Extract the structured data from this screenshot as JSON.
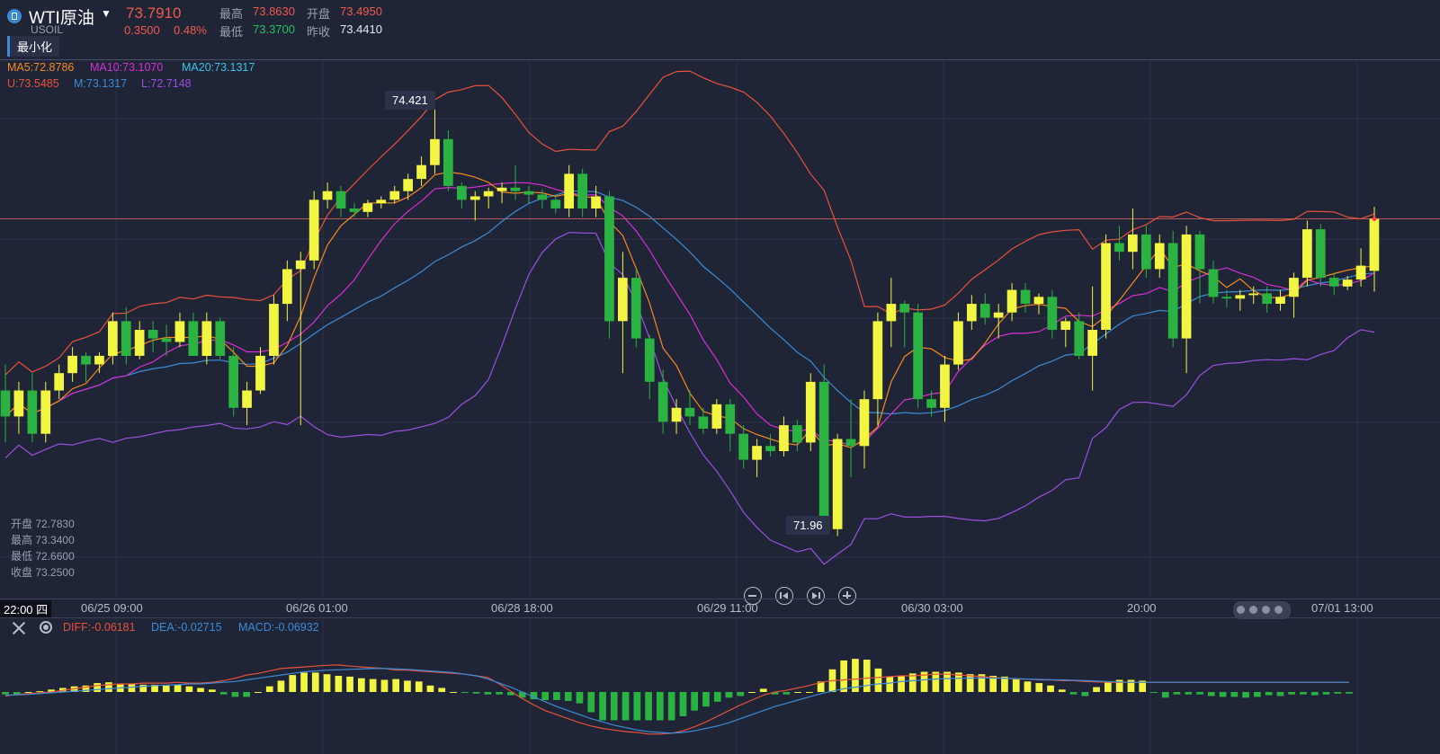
{
  "symbol": {
    "name": "WTI原油",
    "code": "USOIL",
    "last": "73.7910",
    "change": "0.3500",
    "change_pct": "0.48%"
  },
  "ohlc_summary": [
    {
      "label": "最高",
      "value": "73.8630",
      "color": "#f05a4e"
    },
    {
      "label": "开盘",
      "value": "73.4950",
      "color": "#f05a4e"
    },
    {
      "label": "最低",
      "value": "73.3700",
      "color": "#29c25a"
    },
    {
      "label": "昨收",
      "value": "73.4410",
      "color": "#e8eaf0"
    }
  ],
  "minimize_label": "最小化",
  "legend_ma": [
    {
      "text": "MA5:72.8786",
      "color": "#f58a1f"
    },
    {
      "text": "MA10:73.1070",
      "color": "#d92fd6"
    },
    {
      "text": "MA20:73.1317",
      "color": "#3cc3e8"
    }
  ],
  "legend_boll": [
    {
      "text": "U:73.5485",
      "color": "#e8513c"
    },
    {
      "text": "M:73.1317",
      "color": "#3d8bd8"
    },
    {
      "text": "L:72.7148",
      "color": "#9b51e0"
    }
  ],
  "hover_ohlc": [
    {
      "label": "开盘",
      "value": "72.7830"
    },
    {
      "label": "最高",
      "value": "73.3400"
    },
    {
      "label": "最低",
      "value": "72.6600"
    },
    {
      "label": "收盘",
      "value": "73.2500"
    }
  ],
  "cursor_time": "22:00 四",
  "time_labels": [
    "06/25 09:00",
    "06/26 01:00",
    "06/28 18:00",
    "06/29 11:00",
    "06/30 03:00",
    "20:00",
    "07/01 13:00"
  ],
  "legend_macd": [
    {
      "text": "DIFF:-0.06181",
      "color": "#e8513c"
    },
    {
      "text": "DEA:-0.02715",
      "color": "#3d8bd8"
    },
    {
      "text": "MACD:-0.06932",
      "color": "#3d8bd8"
    }
  ],
  "colors": {
    "up": "#f2f542",
    "down": "#2bb342",
    "background": "#1f2436",
    "grid": "#2c3248",
    "last_price_line": "#b05a5a",
    "ma5": "#f58a1f",
    "ma10": "#d92fd6",
    "ma20": "#3d8bd8",
    "upper": "#e8513c",
    "lower": "#9b51e0"
  },
  "chart_data": [
    {
      "type": "candlestick",
      "title": "",
      "annotations": [
        {
          "text": "74.421",
          "kind": "max"
        },
        {
          "text": "71.96",
          "kind": "min"
        }
      ],
      "ylim": [
        71.6,
        74.7
      ],
      "last_price": 73.79,
      "candles": [
        [
          72.8,
          72.95,
          72.5,
          72.65
        ],
        [
          72.65,
          72.85,
          72.55,
          72.8
        ],
        [
          72.8,
          72.9,
          72.5,
          72.55
        ],
        [
          72.55,
          72.85,
          72.5,
          72.8
        ],
        [
          72.8,
          72.95,
          72.75,
          72.9
        ],
        [
          72.9,
          73.05,
          72.85,
          73.0
        ],
        [
          73.0,
          73.02,
          72.85,
          72.95
        ],
        [
          72.95,
          73.02,
          72.9,
          73.0
        ],
        [
          73.0,
          73.25,
          72.95,
          73.2
        ],
        [
          73.2,
          73.28,
          72.95,
          73.0
        ],
        [
          73.0,
          73.2,
          72.98,
          73.15
        ],
        [
          73.15,
          73.2,
          73.02,
          73.1
        ],
        [
          73.1,
          73.18,
          73.0,
          73.08
        ],
        [
          73.08,
          73.25,
          73.05,
          73.2
        ],
        [
          73.2,
          73.25,
          73.0,
          73.0
        ],
        [
          73.0,
          73.25,
          72.95,
          73.2
        ],
        [
          73.2,
          73.22,
          72.98,
          73.0
        ],
        [
          73.0,
          73.05,
          72.65,
          72.7
        ],
        [
          72.7,
          72.85,
          72.6,
          72.8
        ],
        [
          72.8,
          73.05,
          72.78,
          73.0
        ],
        [
          73.0,
          73.35,
          72.95,
          73.3
        ],
        [
          73.3,
          73.55,
          73.2,
          73.5
        ],
        [
          73.5,
          73.6,
          72.6,
          73.55
        ],
        [
          73.55,
          73.95,
          73.5,
          73.9
        ],
        [
          73.9,
          74.0,
          73.85,
          73.95
        ],
        [
          73.95,
          73.98,
          73.8,
          73.85
        ],
        [
          73.85,
          73.88,
          73.8,
          73.83
        ],
        [
          73.83,
          73.9,
          73.8,
          73.88
        ],
        [
          73.88,
          73.92,
          73.85,
          73.9
        ],
        [
          73.9,
          73.98,
          73.88,
          73.95
        ],
        [
          73.95,
          74.05,
          73.9,
          74.02
        ],
        [
          74.02,
          74.15,
          73.98,
          74.1
        ],
        [
          74.1,
          74.42,
          74.05,
          74.25
        ],
        [
          74.25,
          74.3,
          73.95,
          73.98
        ],
        [
          73.98,
          74.0,
          73.85,
          73.9
        ],
        [
          73.9,
          73.95,
          73.78,
          73.92
        ],
        [
          73.92,
          73.97,
          73.85,
          73.95
        ],
        [
          73.95,
          74.0,
          73.88,
          73.97
        ],
        [
          73.97,
          74.1,
          73.9,
          73.95
        ],
        [
          73.95,
          73.98,
          73.88,
          73.93
        ],
        [
          73.93,
          73.96,
          73.85,
          73.9
        ],
        [
          73.9,
          73.93,
          73.82,
          73.85
        ],
        [
          73.85,
          74.1,
          73.8,
          74.05
        ],
        [
          74.05,
          74.08,
          73.8,
          73.85
        ],
        [
          73.85,
          73.98,
          73.8,
          73.92
        ],
        [
          73.92,
          73.95,
          73.1,
          73.2
        ],
        [
          73.2,
          73.6,
          72.9,
          73.45
        ],
        [
          73.45,
          73.5,
          73.05,
          73.1
        ],
        [
          73.1,
          73.12,
          72.75,
          72.85
        ],
        [
          72.85,
          72.92,
          72.55,
          72.62
        ],
        [
          72.62,
          72.75,
          72.55,
          72.7
        ],
        [
          72.7,
          72.8,
          72.6,
          72.65
        ],
        [
          72.65,
          72.7,
          72.55,
          72.58
        ],
        [
          72.58,
          72.75,
          72.55,
          72.72
        ],
        [
          72.72,
          72.75,
          72.45,
          72.55
        ],
        [
          72.55,
          72.6,
          72.35,
          72.4
        ],
        [
          72.4,
          72.52,
          72.3,
          72.48
        ],
        [
          72.48,
          72.55,
          72.42,
          72.45
        ],
        [
          72.45,
          72.65,
          72.42,
          72.6
        ],
        [
          72.6,
          72.63,
          72.45,
          72.5
        ],
        [
          72.5,
          72.9,
          72.45,
          72.85
        ],
        [
          72.85,
          72.95,
          71.98,
          72.0
        ],
        [
          72.0,
          72.55,
          71.96,
          72.52
        ],
        [
          72.52,
          72.75,
          72.3,
          72.48
        ],
        [
          72.48,
          72.8,
          72.35,
          72.75
        ],
        [
          72.75,
          73.25,
          72.6,
          73.2
        ],
        [
          73.2,
          73.45,
          73.05,
          73.3
        ],
        [
          73.3,
          73.32,
          73.05,
          73.25
        ],
        [
          73.25,
          73.3,
          72.7,
          72.75
        ],
        [
          72.75,
          72.8,
          72.65,
          72.7
        ],
        [
          72.7,
          73.0,
          72.62,
          72.95
        ],
        [
          72.95,
          73.25,
          72.92,
          73.2
        ],
        [
          73.2,
          73.35,
          73.15,
          73.3
        ],
        [
          73.3,
          73.36,
          73.18,
          73.22
        ],
        [
          73.22,
          73.3,
          73.1,
          73.25
        ],
        [
          73.25,
          73.42,
          73.2,
          73.38
        ],
        [
          73.38,
          73.42,
          73.25,
          73.3
        ],
        [
          73.3,
          73.36,
          73.24,
          73.34
        ],
        [
          73.34,
          73.38,
          73.1,
          73.15
        ],
        [
          73.15,
          73.22,
          73.05,
          73.2
        ],
        [
          73.2,
          73.25,
          72.98,
          73.0
        ],
        [
          73.0,
          73.4,
          72.8,
          73.15
        ],
        [
          73.15,
          73.7,
          73.1,
          73.65
        ],
        [
          73.65,
          73.75,
          73.55,
          73.6
        ],
        [
          73.6,
          73.85,
          73.5,
          73.7
        ],
        [
          73.7,
          73.75,
          73.45,
          73.5
        ],
        [
          73.5,
          73.7,
          73.45,
          73.65
        ],
        [
          73.65,
          73.72,
          73.05,
          73.1
        ],
        [
          73.1,
          73.75,
          72.9,
          73.7
        ],
        [
          73.7,
          73.72,
          73.3,
          73.5
        ],
        [
          73.5,
          73.55,
          73.3,
          73.34
        ],
        [
          73.34,
          73.38,
          73.28,
          73.33
        ],
        [
          73.33,
          73.38,
          73.26,
          73.35
        ],
        [
          73.35,
          73.4,
          73.3,
          73.36
        ],
        [
          73.36,
          73.4,
          73.25,
          73.3
        ],
        [
          73.3,
          73.38,
          73.26,
          73.34
        ],
        [
          73.34,
          73.48,
          73.22,
          73.45
        ],
        [
          73.45,
          73.78,
          73.4,
          73.73
        ],
        [
          73.73,
          73.76,
          73.4,
          73.45
        ],
        [
          73.45,
          73.48,
          73.35,
          73.4
        ],
        [
          73.4,
          73.46,
          73.38,
          73.44
        ],
        [
          73.44,
          73.62,
          73.4,
          73.52
        ],
        [
          73.49,
          73.86,
          73.37,
          73.79
        ]
      ]
    },
    {
      "type": "bar",
      "title": "",
      "ylim": [
        -0.35,
        0.45
      ],
      "macd": [
        -0.03,
        -0.03,
        0.0,
        0.01,
        0.03,
        0.05,
        0.07,
        0.08,
        0.11,
        0.12,
        0.1,
        0.1,
        0.09,
        0.09,
        0.08,
        0.09,
        0.07,
        0.05,
        0.03,
        -0.03,
        -0.06,
        -0.06,
        0.0,
        0.07,
        0.14,
        0.21,
        0.24,
        0.24,
        0.22,
        0.2,
        0.19,
        0.17,
        0.16,
        0.15,
        0.16,
        0.14,
        0.13,
        0.08,
        0.05,
        0.0,
        -0.01,
        -0.02,
        -0.03,
        -0.03,
        -0.04,
        -0.07,
        -0.09,
        -0.1,
        -0.1,
        -0.11,
        -0.14,
        -0.25,
        -0.35,
        -0.35,
        -0.35,
        -0.35,
        -0.35,
        -0.35,
        -0.35,
        -0.3,
        -0.23,
        -0.18,
        -0.12,
        -0.07,
        -0.05,
        0.0,
        0.04,
        -0.03,
        -0.03,
        0.0,
        0.0,
        0.13,
        0.28,
        0.39,
        0.41,
        0.4,
        0.29,
        0.19,
        0.2,
        0.23,
        0.25,
        0.25,
        0.25,
        0.24,
        0.22,
        0.22,
        0.2,
        0.19,
        0.16,
        0.13,
        0.11,
        0.08,
        0.03,
        -0.03,
        -0.05,
        0.06,
        0.12,
        0.15,
        0.15,
        0.14,
        -0.01,
        -0.07,
        -0.03,
        -0.03,
        -0.03,
        -0.05,
        -0.06,
        -0.06,
        -0.07,
        -0.06,
        -0.04,
        -0.05,
        -0.03,
        -0.03,
        -0.04,
        -0.03,
        -0.02,
        -0.02
      ],
      "diff": [
        -0.05,
        -0.03,
        -0.02,
        -0.01,
        0.0,
        0.02,
        0.04,
        0.06,
        0.08,
        0.09,
        0.1,
        0.1,
        0.11,
        0.11,
        0.11,
        0.12,
        0.11,
        0.11,
        0.12,
        0.14,
        0.17,
        0.21,
        0.23,
        0.26,
        0.29,
        0.3,
        0.31,
        0.32,
        0.33,
        0.335,
        0.32,
        0.31,
        0.3,
        0.29,
        0.27,
        0.27,
        0.26,
        0.25,
        0.24,
        0.23,
        0.22,
        0.2,
        0.18,
        0.1,
        0.01,
        -0.08,
        -0.16,
        -0.23,
        -0.28,
        -0.33,
        -0.38,
        -0.42,
        -0.45,
        -0.47,
        -0.49,
        -0.5,
        -0.52,
        -0.52,
        -0.51,
        -0.48,
        -0.43,
        -0.37,
        -0.3,
        -0.23,
        -0.16,
        -0.1,
        -0.04,
        0.0,
        0.02,
        0.05,
        0.08,
        0.12,
        0.14,
        0.15,
        0.16,
        0.17,
        0.18,
        0.19,
        0.2,
        0.2,
        0.21,
        0.22,
        0.22,
        0.21,
        0.2,
        0.19,
        0.18,
        0.17,
        0.16,
        0.16,
        0.15,
        0.15,
        0.14,
        0.14,
        0.13,
        0.125,
        0.12,
        0.12,
        0.12,
        0.12,
        0.12,
        0.12,
        0.12,
        0.12,
        0.12,
        0.12,
        0.12,
        0.12,
        0.12,
        0.12,
        0.12,
        0.12,
        0.12,
        0.12,
        0.12,
        0.12,
        0.12,
        0.12
      ],
      "dea": [
        -0.04,
        -0.035,
        -0.03,
        -0.02,
        -0.01,
        0.0,
        0.01,
        0.02,
        0.03,
        0.04,
        0.05,
        0.06,
        0.07,
        0.08,
        0.085,
        0.09,
        0.1,
        0.1,
        0.11,
        0.12,
        0.13,
        0.15,
        0.17,
        0.19,
        0.21,
        0.23,
        0.25,
        0.26,
        0.27,
        0.275,
        0.28,
        0.285,
        0.29,
        0.29,
        0.285,
        0.28,
        0.27,
        0.26,
        0.25,
        0.24,
        0.22,
        0.2,
        0.16,
        0.11,
        0.06,
        0.0,
        -0.06,
        -0.12,
        -0.18,
        -0.23,
        -0.28,
        -0.33,
        -0.37,
        -0.41,
        -0.44,
        -0.47,
        -0.49,
        -0.5,
        -0.51,
        -0.5,
        -0.48,
        -0.45,
        -0.42,
        -0.38,
        -0.33,
        -0.28,
        -0.23,
        -0.18,
        -0.14,
        -0.1,
        -0.06,
        -0.02,
        0.01,
        0.04,
        0.06,
        0.08,
        0.1,
        0.11,
        0.13,
        0.14,
        0.15,
        0.16,
        0.165,
        0.17,
        0.17,
        0.175,
        0.17,
        0.17,
        0.165,
        0.16,
        0.155,
        0.15,
        0.15,
        0.145,
        0.14,
        0.135,
        0.13,
        0.125,
        0.12,
        0.12,
        0.12,
        0.12,
        0.12,
        0.12,
        0.12,
        0.12,
        0.12,
        0.12,
        0.12,
        0.12,
        0.12,
        0.12,
        0.12,
        0.12,
        0.12,
        0.12,
        0.12,
        0.12
      ]
    }
  ]
}
